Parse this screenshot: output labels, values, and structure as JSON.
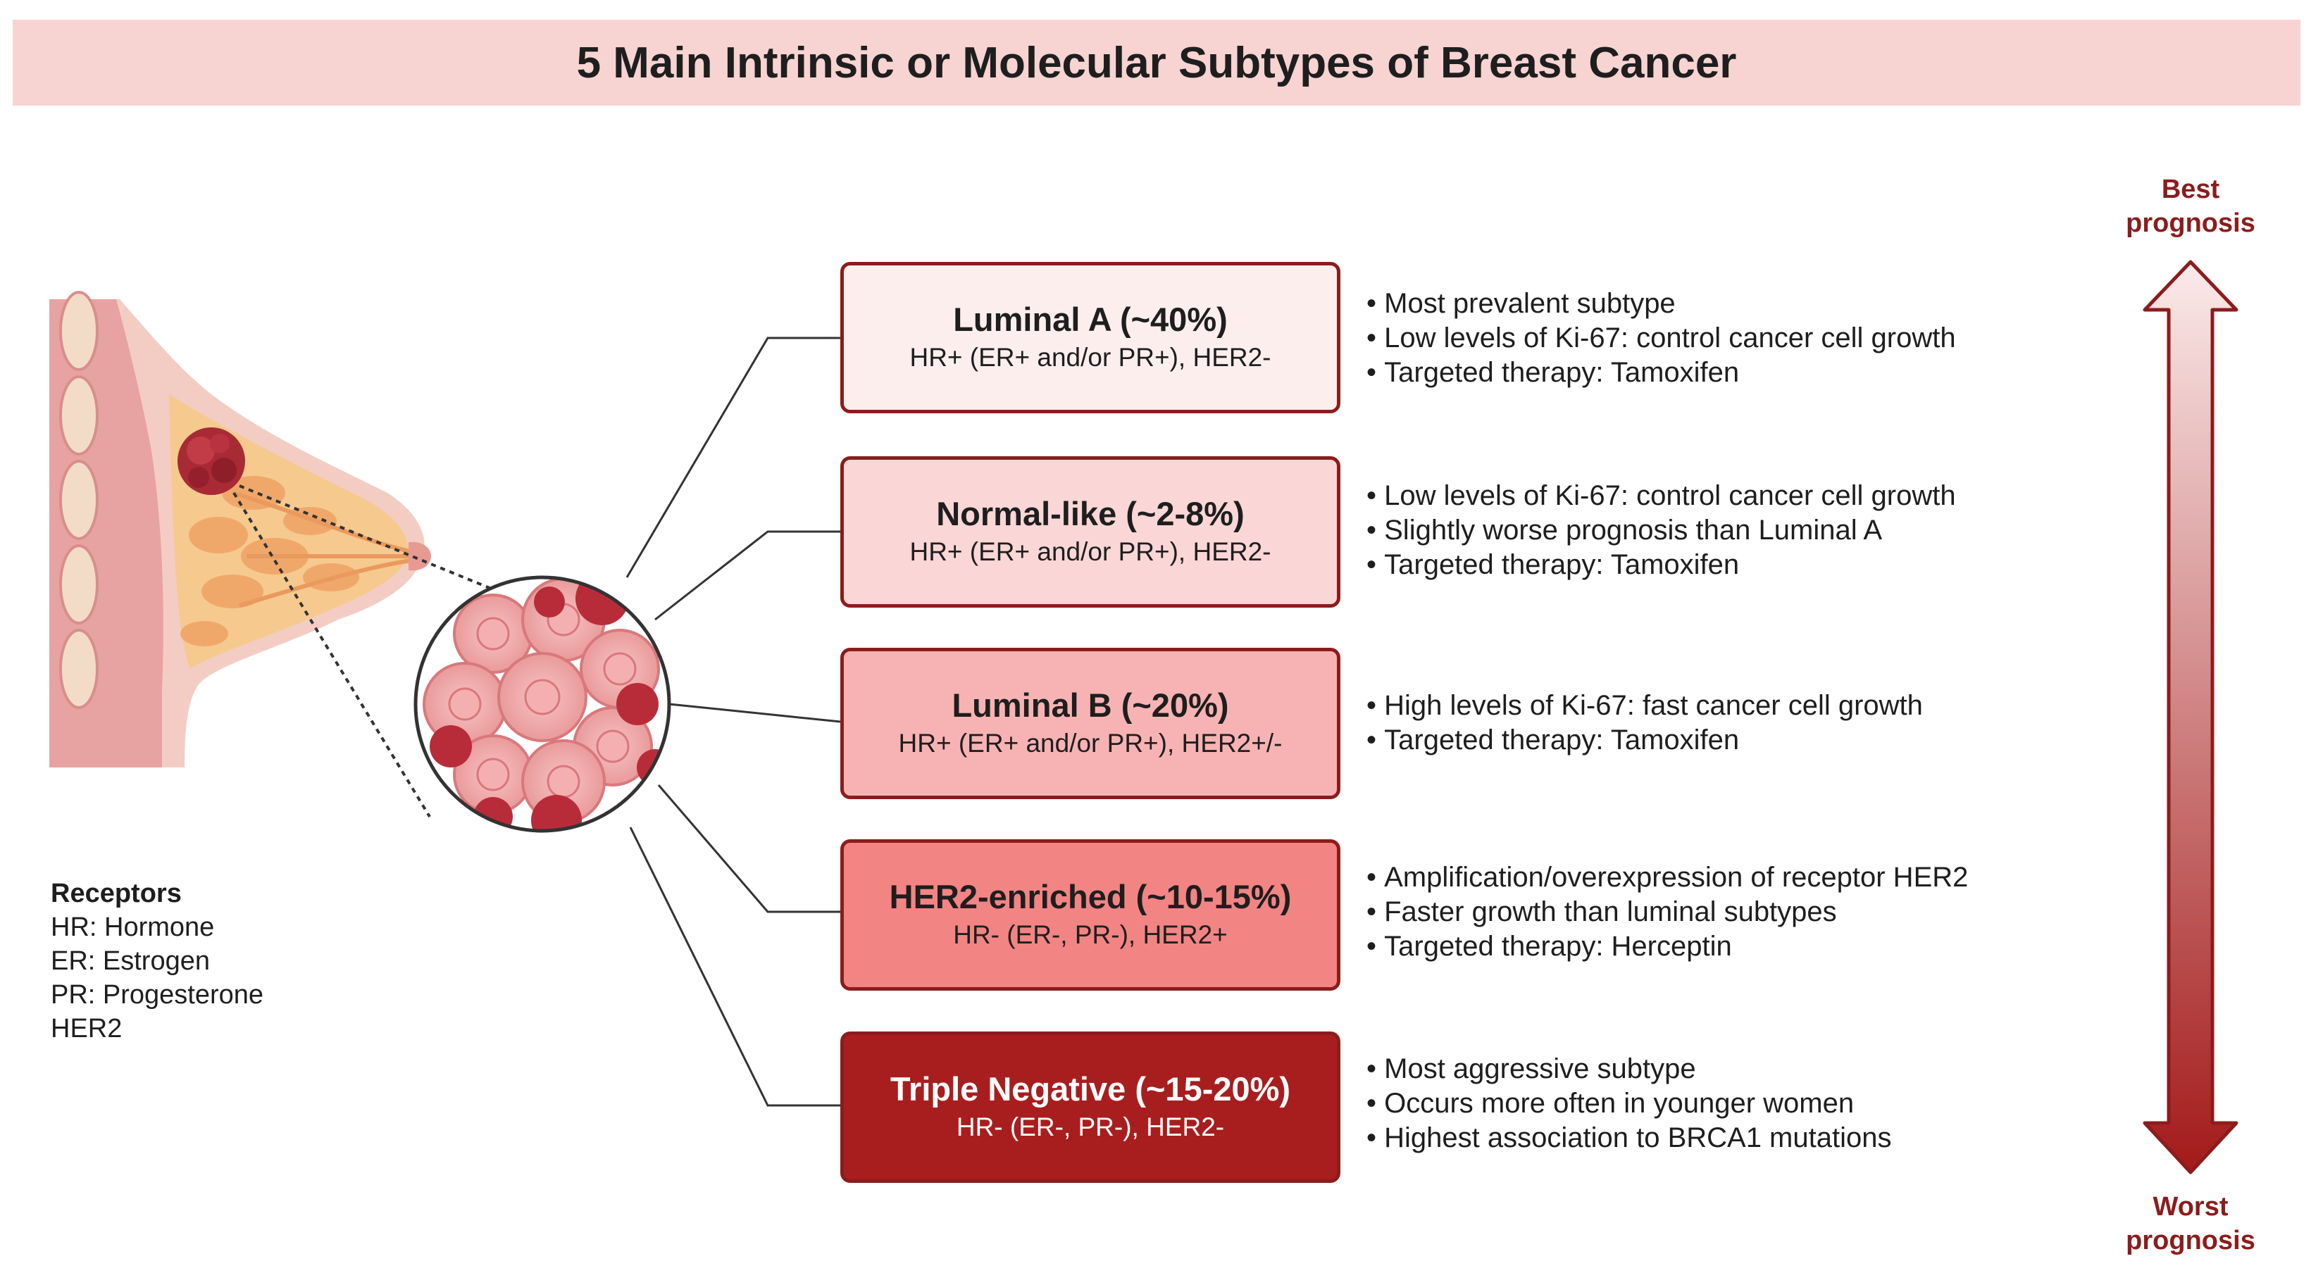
{
  "title": "5 Main Intrinsic or Molecular Subtypes of Breast Cancer",
  "subtypes": [
    {
      "name": "Luminal A (~40%)",
      "receptors": "HR+ (ER+ and/or PR+), HER2-",
      "fill": "#fdeeee",
      "bullets": [
        "Most prevalent subtype",
        "Low levels of Ki-67: control cancer cell growth",
        "Targeted therapy: Tamoxifen"
      ]
    },
    {
      "name": "Normal-like (~2-8%)",
      "receptors": "HR+ (ER+ and/or PR+), HER2-",
      "fill": "#fbd6d6",
      "bullets": [
        "Low levels of Ki-67: control cancer cell growth",
        "Slightly worse prognosis than Luminal A",
        "Targeted therapy: Tamoxifen"
      ]
    },
    {
      "name": "Luminal B (~20%)",
      "receptors": "HR+ (ER+ and/or PR+), HER2+/-",
      "fill": "#f7b3b3",
      "bullets": [
        "High levels of Ki-67: fast cancer cell growth",
        "Targeted therapy: Tamoxifen"
      ]
    },
    {
      "name": "HER2-enriched (~10-15%)",
      "receptors": "HR- (ER-, PR-), HER2+",
      "fill": "#f28484",
      "bullets": [
        "Amplification/overexpression of receptor HER2",
        "Faster growth than luminal subtypes",
        "Targeted therapy: Herceptin"
      ]
    },
    {
      "name": "Triple Negative (~15-20%)",
      "receptors": "HR- (ER-, PR-), HER2-",
      "fill": "#a81e1e",
      "bullets": [
        "Most aggressive subtype",
        "Occurs more often in younger women",
        "Highest association to BRCA1 mutations"
      ]
    }
  ],
  "receptors_legend": {
    "heading": "Receptors",
    "items": [
      "HR: Hormone",
      "ER: Estrogen",
      "PR: Progesterone",
      "HER2"
    ]
  },
  "prognosis": {
    "top_line1": "Best",
    "top_line2": "prognosis",
    "bottom_line1": "Worst",
    "bottom_line2": "prognosis",
    "arrow_color_top": "#fbeaea",
    "arrow_color_bottom": "#a31a1a"
  },
  "colors": {
    "title_bg": "#f7d3d1",
    "box_border": "#8c1c1c",
    "accent": "#8c1c1c"
  }
}
